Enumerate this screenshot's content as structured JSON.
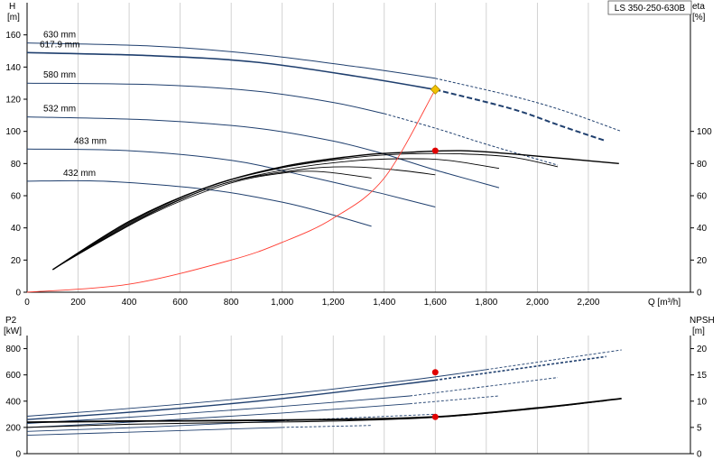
{
  "chart_data": [
    {
      "type": "line",
      "title": "LS 350-250-630B",
      "y_left": {
        "label_line1": "H",
        "label_line2": "[m]",
        "ticks": [
          0,
          20,
          40,
          60,
          80,
          100,
          120,
          140,
          160
        ],
        "range": [
          0,
          180
        ]
      },
      "y_right": {
        "label_line1": "eta",
        "label_line2": "[%]",
        "ticks": [
          0,
          20,
          40,
          60,
          80,
          100
        ],
        "range": [
          0,
          180
        ]
      },
      "x": {
        "label": "Q [m³/h]",
        "ticks": [
          0,
          200,
          400,
          600,
          800,
          1000,
          1200,
          1400,
          1600,
          1800,
          2000,
          2200
        ],
        "tick_labels": [
          "0",
          "200",
          "400",
          "600",
          "800",
          "1,000",
          "1,200",
          "1,400",
          "1,600",
          "1,800",
          "2,000",
          "2,200"
        ],
        "range": [
          0,
          2600
        ]
      },
      "grid": "vertical",
      "head_curves": [
        {
          "name": "630 mm",
          "points": [
            [
              0,
              155
            ],
            [
              500,
              153
            ],
            [
              900,
              148
            ],
            [
              1300,
              140
            ],
            [
              1600,
              133
            ],
            [
              1900,
              122
            ],
            [
              2100,
              113
            ],
            [
              2330,
              100
            ]
          ]
        },
        {
          "name": "617.9 mm",
          "points": [
            [
              0,
              149
            ],
            [
              500,
              147
            ],
            [
              900,
              143
            ],
            [
              1300,
              134
            ],
            [
              1600,
              126
            ],
            [
              1900,
              114
            ],
            [
              2100,
              103
            ],
            [
              2270,
              94
            ]
          ]
        },
        {
          "name": "580 mm",
          "points": [
            [
              0,
              130
            ],
            [
              500,
              129
            ],
            [
              900,
              125
            ],
            [
              1200,
              118
            ],
            [
              1400,
              111
            ],
            [
              1600,
              102
            ],
            [
              1800,
              92
            ],
            [
              2080,
              79
            ]
          ]
        },
        {
          "name": "532 mm",
          "points": [
            [
              0,
              109
            ],
            [
              500,
              107
            ],
            [
              900,
              102
            ],
            [
              1200,
              94
            ],
            [
              1400,
              86
            ],
            [
              1600,
              76
            ],
            [
              1850,
              65
            ]
          ]
        },
        {
          "name": "483 mm",
          "points": [
            [
              0,
              89
            ],
            [
              400,
              88
            ],
            [
              800,
              82
            ],
            [
              1100,
              72
            ],
            [
              1400,
              61
            ],
            [
              1600,
              53
            ]
          ]
        },
        {
          "name": "432 mm",
          "points": [
            [
              0,
              69
            ],
            [
              300,
              69
            ],
            [
              700,
              64
            ],
            [
              1000,
              56
            ],
            [
              1200,
              48
            ],
            [
              1350,
              41
            ]
          ]
        }
      ],
      "efficiency_curves": [
        {
          "points": [
            [
              100,
              14
            ],
            [
              400,
              44
            ],
            [
              700,
              65
            ],
            [
              1000,
              78
            ],
            [
              1300,
              85
            ],
            [
              1500,
              87
            ],
            [
              1700,
              88
            ],
            [
              1900,
              86
            ],
            [
              2320,
              80
            ]
          ]
        },
        {
          "points": [
            [
              110,
              15
            ],
            [
              420,
              45
            ],
            [
              720,
              66
            ],
            [
              1020,
              78
            ],
            [
              1300,
              84
            ],
            [
              1500,
              86
            ],
            [
              1700,
              86
            ],
            [
              1900,
              84
            ],
            [
              2080,
              78
            ]
          ]
        },
        {
          "points": [
            [
              120,
              16
            ],
            [
              440,
              46
            ],
            [
              740,
              66
            ],
            [
              1040,
              77
            ],
            [
              1300,
              82
            ],
            [
              1500,
              83
            ],
            [
              1650,
              82
            ],
            [
              1850,
              77
            ]
          ]
        },
        {
          "points": [
            [
              130,
              17
            ],
            [
              460,
              47
            ],
            [
              760,
              67
            ],
            [
              1060,
              76
            ],
            [
              1260,
              78
            ],
            [
              1450,
              76
            ],
            [
              1600,
              73
            ]
          ]
        },
        {
          "points": [
            [
              140,
              18
            ],
            [
              480,
              48
            ],
            [
              780,
              67
            ],
            [
              1000,
              74
            ],
            [
              1150,
              75
            ],
            [
              1350,
              71
            ]
          ]
        }
      ],
      "system_curve": {
        "points": [
          [
            0,
            0
          ],
          [
            400,
            5
          ],
          [
            800,
            20
          ],
          [
            1000,
            31
          ],
          [
            1200,
            46
          ],
          [
            1400,
            71
          ],
          [
            1600,
            126
          ]
        ]
      },
      "duty_point_head": {
        "q": 1600,
        "h": 126
      },
      "duty_point_eta": {
        "q": 1600,
        "eta": 88
      },
      "colors": {
        "curves": "#1f3f6e",
        "efficiency": "#000000",
        "system": "#ff3b30",
        "duty_head": "#f2c200",
        "duty_eta": "#e00000",
        "grid": "#c8c8c8"
      }
    },
    {
      "type": "line",
      "y_left": {
        "label_line1": "P2",
        "label_line2": "[kW]",
        "ticks": [
          0,
          200,
          400,
          600,
          800
        ],
        "range": [
          0,
          900
        ]
      },
      "y_right": {
        "label_line1": "NPSH",
        "label_line2": "[m]",
        "ticks": [
          0,
          5,
          10,
          15,
          20
        ],
        "range": [
          0,
          22.5
        ]
      },
      "x": {
        "range": [
          0,
          2600
        ]
      },
      "power_curves": [
        {
          "points": [
            [
              0,
              285
            ],
            [
              500,
              360
            ],
            [
              1000,
              450
            ],
            [
              1500,
              560
            ],
            [
              1800,
              640
            ],
            [
              2330,
              790
            ]
          ]
        },
        {
          "points": [
            [
              0,
              260
            ],
            [
              500,
              330
            ],
            [
              1000,
              420
            ],
            [
              1600,
              560
            ],
            [
              2270,
              740
            ]
          ]
        },
        {
          "points": [
            [
              0,
              230
            ],
            [
              500,
              290
            ],
            [
              1000,
              360
            ],
            [
              1500,
              440
            ],
            [
              2080,
              580
            ]
          ]
        },
        {
          "points": [
            [
              0,
              200
            ],
            [
              500,
              250
            ],
            [
              1000,
              310
            ],
            [
              1500,
              380
            ],
            [
              1850,
              440
            ]
          ]
        },
        {
          "points": [
            [
              0,
              170
            ],
            [
              500,
              205
            ],
            [
              1000,
              250
            ],
            [
              1600,
              300
            ]
          ]
        },
        {
          "points": [
            [
              0,
              140
            ],
            [
              500,
              170
            ],
            [
              1000,
              200
            ],
            [
              1350,
              215
            ]
          ]
        }
      ],
      "npsh_curves": [
        {
          "points": [
            [
              0,
              6.0
            ],
            [
              400,
              6.2
            ],
            [
              800,
              6.3
            ],
            [
              1200,
              6.5
            ],
            [
              1600,
              7.0
            ],
            [
              2000,
              8.7
            ],
            [
              2330,
              10.5
            ]
          ]
        },
        {
          "points": [
            [
              0,
              5.0
            ],
            [
              400,
              5.6
            ],
            [
              800,
              5.9
            ],
            [
              1200,
              6.2
            ],
            [
              1600,
              6.9
            ],
            [
              2000,
              8.6
            ],
            [
              2270,
              10.1
            ]
          ]
        }
      ],
      "duty_point_power": {
        "q": 1600,
        "p2": 620
      },
      "duty_point_npsh": {
        "q": 1600,
        "npsh": 7.0
      }
    }
  ]
}
